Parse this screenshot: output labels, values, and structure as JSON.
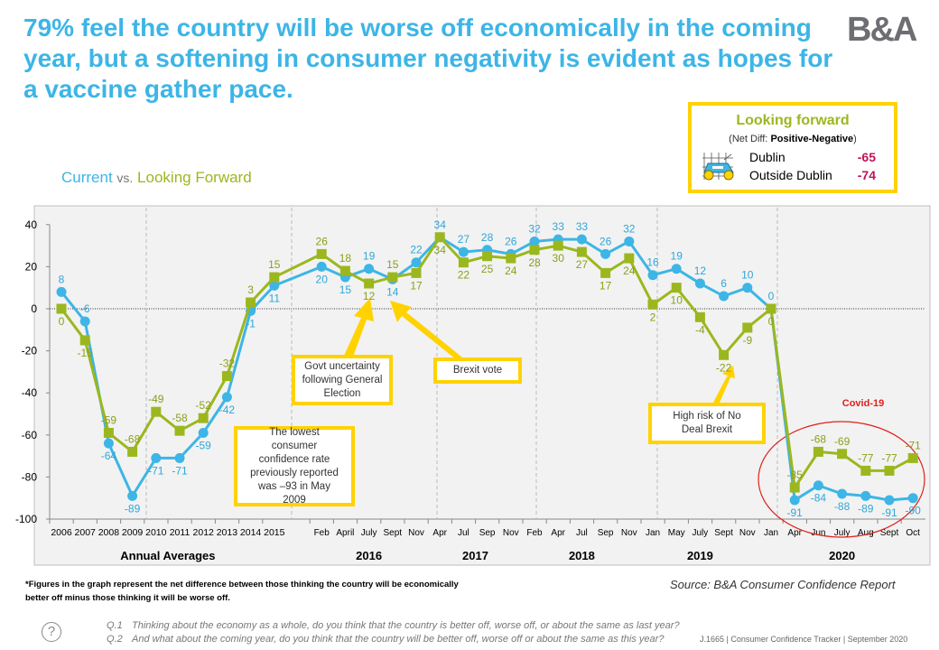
{
  "header": {
    "title": "79% feel the country will be worse off economically in the coming year, but a softening in consumer negativity is evident as hopes for a vaccine gather pace.",
    "logo_text": "B&A",
    "subtitle_current": "Current",
    "subtitle_vs": "vs.",
    "subtitle_forward": "Looking Forward"
  },
  "looking_forward_box": {
    "title": "Looking forward",
    "sub_prefix": "(Net Diff: ",
    "sub_bold": "Positive-Negative",
    "sub_suffix": ")",
    "icon": "car-chart-icon",
    "rows": [
      {
        "label": "Dublin",
        "value": "-65"
      },
      {
        "label": "Outside Dublin",
        "value": "-74"
      }
    ]
  },
  "annotations": {
    "govt": "Govt uncertainty following General Election",
    "brexit": "Brexit vote",
    "lowest": "The lowest consumer confidence rate previously reported was –93 in May 2009",
    "nodeal": "High risk of No Deal Brexit",
    "covid": "Covid-19"
  },
  "colors": {
    "current": "#3db5e6",
    "forward": "#9bb71e",
    "highlight": "#ffd200",
    "covid": "#e0201b"
  },
  "chart_data": {
    "type": "line",
    "title": "Current vs. Looking Forward",
    "ylim": [
      -100,
      40
    ],
    "yticks": [
      40,
      20,
      0,
      -20,
      -40,
      -60,
      -80,
      -100
    ],
    "x": [
      "2006",
      "2007",
      "2008",
      "2009",
      "2010",
      "2011",
      "2012",
      "2013",
      "2014",
      "2015",
      "Feb",
      "April",
      "July",
      "Sept",
      "Nov",
      "Apr",
      "Jul",
      "Sep",
      "Nov",
      "Feb",
      "Apr",
      "Jul",
      "Sep",
      "Nov",
      "Jan",
      "May",
      "July",
      "Sept",
      "Nov",
      "Jan",
      "Apr",
      "Jun",
      "July",
      "Aug",
      "Sept",
      "Oct"
    ],
    "groups": [
      {
        "label": "Annual Averages",
        "start": 0,
        "end": 9
      },
      {
        "label": "2016",
        "start": 10,
        "end": 14
      },
      {
        "label": "2017",
        "start": 15,
        "end": 18
      },
      {
        "label": "2018",
        "start": 19,
        "end": 23
      },
      {
        "label": "2019",
        "start": 24,
        "end": 28
      },
      {
        "label": "2020",
        "start": 29,
        "end": 35
      }
    ],
    "series": [
      {
        "name": "Current",
        "values": [
          8,
          -6,
          -64,
          -89,
          -71,
          -71,
          -59,
          -42,
          -1,
          11,
          20,
          15,
          19,
          14,
          22,
          34,
          27,
          28,
          26,
          32,
          33,
          33,
          26,
          32,
          16,
          19,
          12,
          6,
          10,
          0,
          -91,
          -84,
          -88,
          -89,
          -91,
          -90
        ]
      },
      {
        "name": "Looking Forward",
        "values": [
          0,
          -15,
          -59,
          -68,
          -49,
          -58,
          -52,
          -32,
          3,
          15,
          26,
          18,
          12,
          15,
          17,
          34,
          22,
          25,
          24,
          28,
          30,
          27,
          17,
          24,
          2,
          10,
          -4,
          -22,
          -9,
          0,
          -85,
          -68,
          -69,
          -77,
          -77,
          -71
        ]
      }
    ]
  },
  "footer": {
    "footnote": "*Figures in the graph represent the net difference between those thinking the country will be economically better off minus those thinking it will be worse off.",
    "source": "Source:  B&A Consumer Confidence Report",
    "q1_num": "Q.1",
    "q1": "Thinking about the economy as a whole, do you think that the country is better off, worse off, or about the same as last year?",
    "q2_num": "Q.2",
    "q2": "And what about the coming year, do you think that the country will be better off, worse off or about the same as this year?",
    "tracker": "J.1665 | Consumer Confidence Tracker | September 2020"
  }
}
